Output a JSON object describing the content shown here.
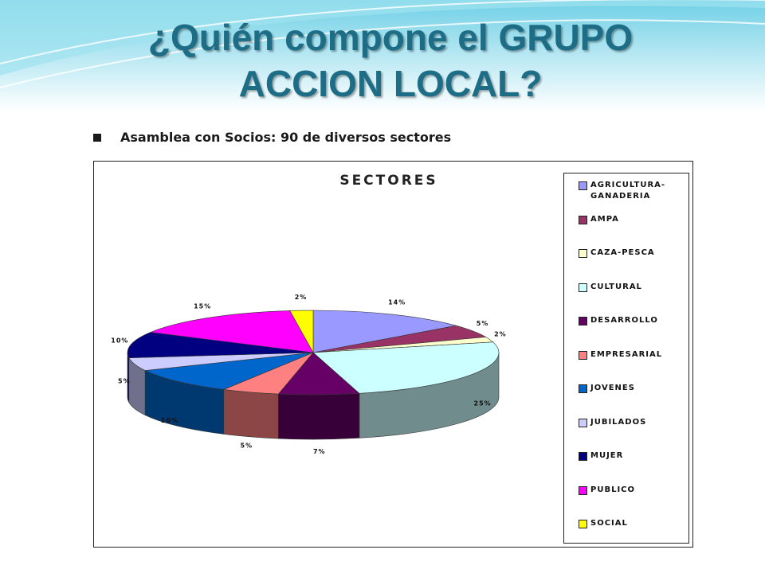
{
  "slide": {
    "title_line1": "¿Quién compone el GRUPO",
    "title_line2": "ACCION LOCAL?",
    "bullet": "Asamblea con Socios: 90 de diversos sectores"
  },
  "chart_data": {
    "type": "pie",
    "title": "SECTORES",
    "legend_position": "right",
    "categories": [
      "AGRICULTURA-GANADERIA",
      "AMPA",
      "CAZA-PESCA",
      "CULTURAL",
      "DESARROLLO",
      "EMPRESARIAL",
      "JOVENES",
      "JUBILADOS",
      "MUJER",
      "PUBLICO",
      "SOCIAL"
    ],
    "values": [
      14,
      5,
      2,
      25,
      7,
      5,
      10,
      5,
      10,
      15,
      2
    ],
    "labels": [
      "14%",
      "5%",
      "2%",
      "25%",
      "7%",
      "5%",
      "10%",
      "5%",
      "10%",
      "15%",
      "2%"
    ],
    "colors": [
      "#9999ff",
      "#993366",
      "#ffffcc",
      "#ccffff",
      "#660066",
      "#ff8080",
      "#0066cc",
      "#ccccff",
      "#000080",
      "#ff00ff",
      "#ffff00"
    ]
  }
}
